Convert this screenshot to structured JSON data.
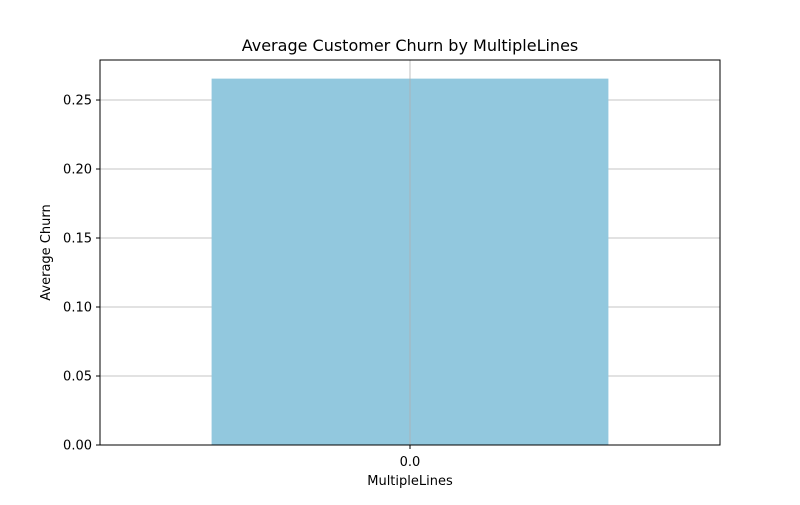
{
  "chart_data": {
    "type": "bar",
    "title": "Average Customer Churn by MultipleLines",
    "xlabel": "MultipleLines",
    "ylabel": "Average Churn",
    "categories": [
      "0.0"
    ],
    "values": [
      0.2655
    ],
    "ylim": [
      0,
      0.279
    ],
    "yticks": [
      0.0,
      0.05,
      0.1,
      0.15,
      0.2,
      0.25
    ],
    "ytick_labels": [
      "0.00",
      "0.05",
      "0.10",
      "0.15",
      "0.20",
      "0.25"
    ],
    "grid": true,
    "legend": "none",
    "bar_color": "#92c8de",
    "grid_color": "#b0b0b0"
  }
}
